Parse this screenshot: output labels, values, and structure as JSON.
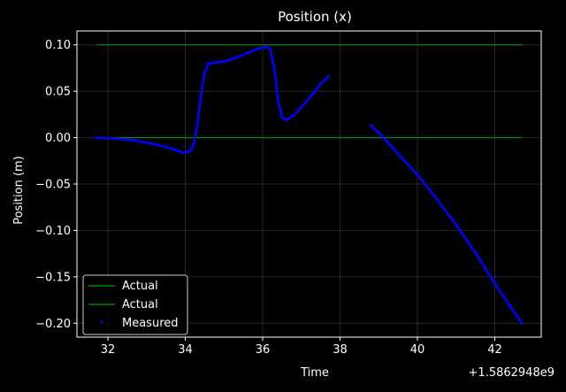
{
  "chart_data": {
    "type": "line",
    "title": "Position (x)",
    "xlabel": "Time",
    "ylabel": "Position (m)",
    "x_offset_label": "+1.5862948e9",
    "xlim": [
      31.2,
      43.2
    ],
    "ylim": [
      -0.215,
      0.115
    ],
    "x_ticks": [
      32,
      34,
      36,
      38,
      40,
      42
    ],
    "y_ticks": [
      -0.2,
      -0.15,
      -0.1,
      -0.05,
      0.0,
      0.05,
      0.1
    ],
    "y_tick_labels": [
      "−0.20",
      "−0.15",
      "−0.10",
      "−0.05",
      "0.00",
      "0.05",
      "0.10"
    ],
    "grid": true,
    "legend_position": "lower-left",
    "series": [
      {
        "name": "Actual",
        "style": "line",
        "color": "#00a000",
        "points": [
          [
            31.7,
            0.1
          ],
          [
            42.7,
            0.1
          ]
        ]
      },
      {
        "name": "Actual",
        "style": "line",
        "color": "#00a000",
        "points": [
          [
            31.7,
            0.0
          ],
          [
            42.7,
            0.0
          ]
        ]
      },
      {
        "name": "Measured",
        "style": "markers",
        "color": "#0000ff",
        "segments": [
          [
            [
              31.7,
              0.0
            ],
            [
              32.2,
              -0.001
            ],
            [
              32.7,
              -0.003
            ],
            [
              33.2,
              -0.007
            ],
            [
              33.5,
              -0.01
            ],
            [
              33.8,
              -0.014
            ],
            [
              33.95,
              -0.016
            ],
            [
              34.1,
              -0.015
            ],
            [
              34.2,
              -0.01
            ],
            [
              34.3,
              0.01
            ],
            [
              34.4,
              0.045
            ],
            [
              34.5,
              0.07
            ],
            [
              34.6,
              0.08
            ],
            [
              34.8,
              0.081
            ],
            [
              35.0,
              0.082
            ],
            [
              35.3,
              0.086
            ],
            [
              35.6,
              0.091
            ],
            [
              35.9,
              0.096
            ],
            [
              36.1,
              0.098
            ],
            [
              36.2,
              0.095
            ],
            [
              36.3,
              0.075
            ],
            [
              36.4,
              0.04
            ],
            [
              36.5,
              0.022
            ],
            [
              36.6,
              0.019
            ],
            [
              36.8,
              0.024
            ],
            [
              37.0,
              0.033
            ],
            [
              37.3,
              0.047
            ],
            [
              37.5,
              0.058
            ],
            [
              37.7,
              0.066
            ]
          ],
          [
            [
              38.8,
              0.013
            ],
            [
              39.0,
              0.005
            ],
            [
              39.3,
              -0.008
            ],
            [
              39.6,
              -0.022
            ],
            [
              40.0,
              -0.04
            ],
            [
              40.5,
              -0.066
            ],
            [
              41.0,
              -0.094
            ],
            [
              41.5,
              -0.124
            ],
            [
              42.0,
              -0.157
            ],
            [
              42.4,
              -0.182
            ],
            [
              42.7,
              -0.2
            ]
          ]
        ]
      }
    ]
  }
}
